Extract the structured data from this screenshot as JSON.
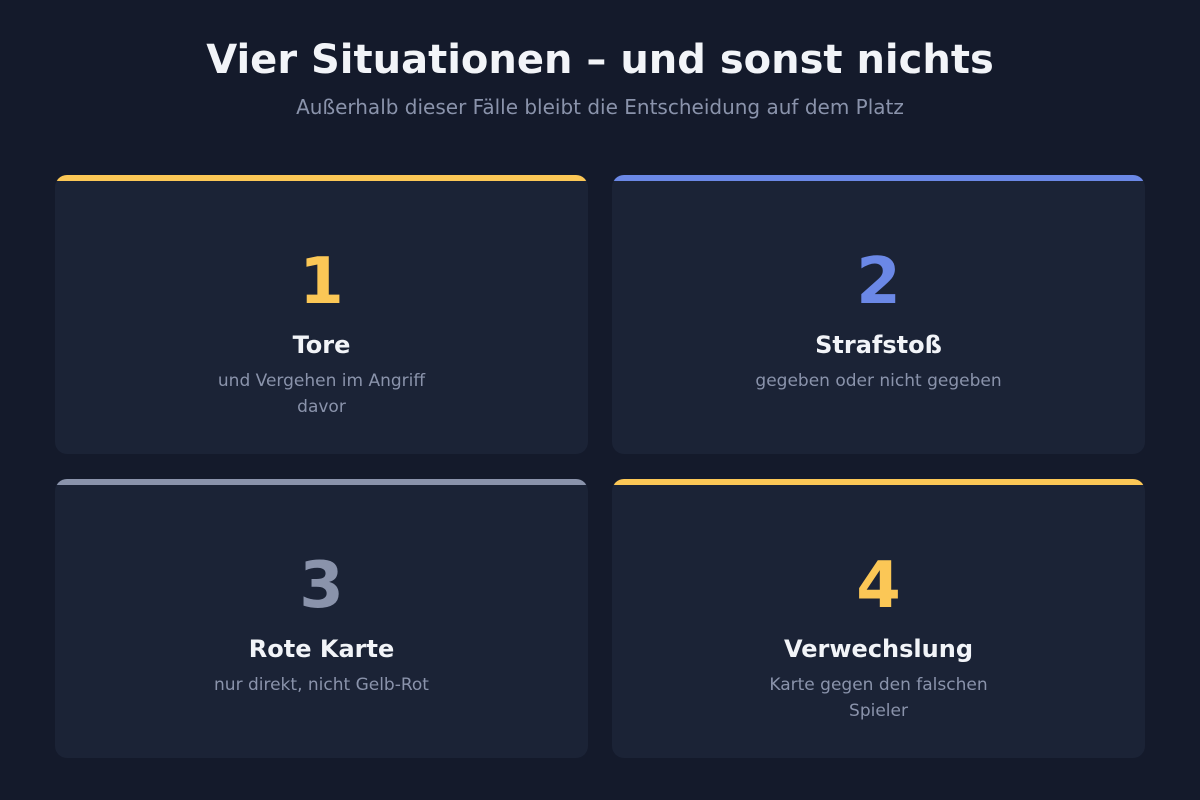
{
  "header": {
    "title": "Vier Situationen – und sonst nichts",
    "subtitle": "Außerhalb dieser Fälle bleibt die Entscheidung auf dem Platz"
  },
  "cards": [
    {
      "number": "1",
      "label": "Tore",
      "description": "und Vergehen im Angriff davor",
      "accent": "#fbc756"
    },
    {
      "number": "2",
      "label": "Strafstoß",
      "description": "gegeben oder nicht gegeben",
      "accent": "#6b88e6"
    },
    {
      "number": "3",
      "label": "Rote Karte",
      "description": "nur direkt, nicht Gelb-Rot",
      "accent": "#8a93ab"
    },
    {
      "number": "4",
      "label": "Verwechslung",
      "description": "Karte gegen den falschen Spieler",
      "accent": "#fbc756"
    }
  ]
}
